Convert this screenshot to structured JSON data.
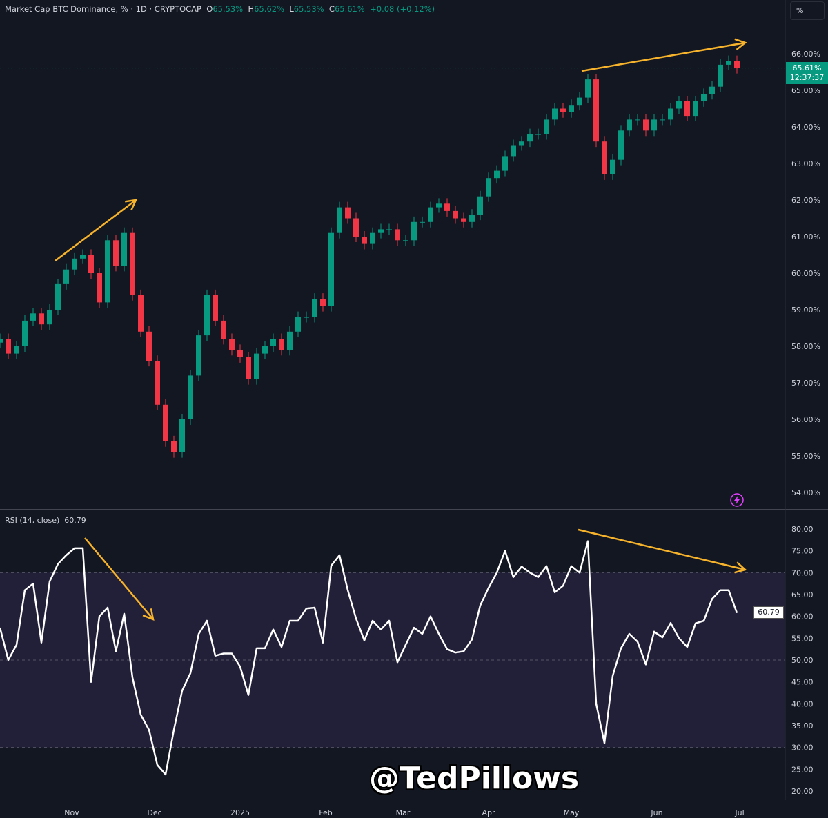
{
  "header": {
    "symbol": "Market Cap BTC Dominance, % · 1D · CRYPTOCAP",
    "o_label": "O",
    "o": "65.53%",
    "h_label": "H",
    "h": "65.62%",
    "l_label": "L",
    "l": "65.53%",
    "c_label": "C",
    "c": "65.61%",
    "change": "+0.08 (+0.12%)"
  },
  "scale_button": "%",
  "last_price": {
    "value": "65.61%",
    "countdown": "12:37:37"
  },
  "rsi_header": {
    "label": "RSI (14, close)",
    "value": "60.79"
  },
  "rsi_tag": "60.79",
  "watermark": "@TedPillows",
  "icons": {
    "alert": "lightning-icon"
  },
  "colors": {
    "up": "#089981",
    "down": "#f23645",
    "background": "#131722",
    "rsi_line": "#ffffff",
    "rsi_band": "#7e57c2",
    "annotation": "#f7b32b"
  },
  "chart_data": [
    {
      "type": "candlestick",
      "title": "Market Cap BTC Dominance, %",
      "interval": "1D",
      "ylim": [
        53.8,
        66.8
      ],
      "y_ticks": [
        "66.00%",
        "65.00%",
        "64.00%",
        "63.00%",
        "62.00%",
        "61.00%",
        "60.00%",
        "59.00%",
        "58.00%",
        "57.00%",
        "56.00%",
        "55.00%",
        "54.00%"
      ],
      "y_tick_values": [
        66,
        65,
        64,
        63,
        62,
        61,
        60,
        59,
        58,
        57,
        56,
        55,
        54
      ],
      "x_ticks": [
        {
          "label": "Nov",
          "date": "2024-11-01"
        },
        {
          "label": "Dec",
          "date": "2024-12-01"
        },
        {
          "label": "2025",
          "date": "2025-01-01"
        },
        {
          "label": "Feb",
          "date": "2025-02-01"
        },
        {
          "label": "Mar",
          "date": "2025-03-01"
        },
        {
          "label": "Apr",
          "date": "2025-04-01"
        },
        {
          "label": "May",
          "date": "2025-05-01"
        },
        {
          "label": "Jun",
          "date": "2025-06-01"
        },
        {
          "label": "Jul",
          "date": "2025-07-01"
        }
      ],
      "grid": false,
      "dates": [
        "2024-10-06",
        "2024-10-09",
        "2024-10-12",
        "2024-10-15",
        "2024-10-18",
        "2024-10-21",
        "2024-10-24",
        "2024-10-27",
        "2024-10-30",
        "2024-11-02",
        "2024-11-05",
        "2024-11-08",
        "2024-11-11",
        "2024-11-14",
        "2024-11-17",
        "2024-11-20",
        "2024-11-23",
        "2024-11-26",
        "2024-11-29",
        "2024-12-02",
        "2024-12-05",
        "2024-12-08",
        "2024-12-11",
        "2024-12-14",
        "2024-12-17",
        "2024-12-20",
        "2024-12-23",
        "2024-12-26",
        "2024-12-29",
        "2025-01-01",
        "2025-01-04",
        "2025-01-07",
        "2025-01-10",
        "2025-01-13",
        "2025-01-16",
        "2025-01-19",
        "2025-01-22",
        "2025-01-25",
        "2025-01-28",
        "2025-01-31",
        "2025-02-03",
        "2025-02-06",
        "2025-02-09",
        "2025-02-12",
        "2025-02-15",
        "2025-02-18",
        "2025-02-21",
        "2025-02-24",
        "2025-02-27",
        "2025-03-02",
        "2025-03-05",
        "2025-03-08",
        "2025-03-11",
        "2025-03-14",
        "2025-03-17",
        "2025-03-20",
        "2025-03-23",
        "2025-03-26",
        "2025-03-29",
        "2025-04-01",
        "2025-04-04",
        "2025-04-07",
        "2025-04-10",
        "2025-04-13",
        "2025-04-16",
        "2025-04-19",
        "2025-04-22",
        "2025-04-25",
        "2025-04-28",
        "2025-05-01",
        "2025-05-04",
        "2025-05-07",
        "2025-05-10",
        "2025-05-13",
        "2025-05-16",
        "2025-05-19",
        "2025-05-22",
        "2025-05-25",
        "2025-05-28",
        "2025-05-31",
        "2025-06-03",
        "2025-06-06",
        "2025-06-09",
        "2025-06-12",
        "2025-06-15",
        "2025-06-18",
        "2025-06-21",
        "2025-06-24",
        "2025-06-27",
        "2025-06-30"
      ],
      "close": [
        58.2,
        57.8,
        58.0,
        58.7,
        58.9,
        58.6,
        59.0,
        59.7,
        60.1,
        60.4,
        60.5,
        60.0,
        59.2,
        60.9,
        60.2,
        61.1,
        59.4,
        58.4,
        57.6,
        56.4,
        55.4,
        55.1,
        56.0,
        57.2,
        58.3,
        59.4,
        58.7,
        58.2,
        57.9,
        57.7,
        57.1,
        57.8,
        58.0,
        58.2,
        57.9,
        58.4,
        58.8,
        58.8,
        59.3,
        59.1,
        61.1,
        61.8,
        61.5,
        61.0,
        60.8,
        61.1,
        61.2,
        61.2,
        60.9,
        60.9,
        61.4,
        61.4,
        61.8,
        61.9,
        61.7,
        61.5,
        61.4,
        61.6,
        62.1,
        62.6,
        62.8,
        63.2,
        63.5,
        63.6,
        63.8,
        63.8,
        64.2,
        64.5,
        64.4,
        64.6,
        64.8,
        65.3,
        63.6,
        62.7,
        63.1,
        63.9,
        64.2,
        64.2,
        63.9,
        64.2,
        64.2,
        64.5,
        64.7,
        64.3,
        64.7,
        64.9,
        65.1,
        65.7,
        65.8,
        65.61
      ],
      "last_value": 65.61
    },
    {
      "type": "line",
      "title": "RSI (14, close)",
      "ylim": [
        17,
        82
      ],
      "y_ticks": [
        "80.00",
        "75.00",
        "70.00",
        "65.00",
        "60.00",
        "55.00",
        "50.00",
        "45.00",
        "40.00",
        "35.00",
        "30.00",
        "25.00",
        "20.00"
      ],
      "y_tick_values": [
        80,
        75,
        70,
        65,
        60,
        55,
        50,
        45,
        40,
        35,
        30,
        25,
        20
      ],
      "bands": {
        "upper": 70,
        "middle": 50,
        "lower": 30
      },
      "values": [
        57.4,
        50,
        53.5,
        66,
        67.5,
        54,
        68,
        72,
        74,
        75.6,
        75.6,
        45,
        60,
        62,
        52,
        60.6,
        46,
        37.5,
        34,
        26,
        23.8,
        34,
        43,
        47,
        56,
        59,
        51,
        51.5,
        51.5,
        48.5,
        42,
        52.7,
        52.7,
        57,
        53,
        59,
        59,
        61.8,
        62,
        54,
        71.6,
        74,
        66,
        59.5,
        54.5,
        59,
        57,
        59,
        49.5,
        53.5,
        57.4,
        56,
        60,
        56,
        52.5,
        51.7,
        52,
        54.7,
        62.5,
        66.5,
        70,
        75,
        69,
        71.4,
        70,
        69,
        71.5,
        65.5,
        67,
        71.5,
        70,
        77.2,
        40,
        31,
        46.4,
        52.7,
        56,
        54.2,
        49,
        56.5,
        55.2,
        58.5,
        55,
        53,
        58.4,
        59,
        64,
        66,
        66,
        60.79
      ],
      "last_value": 60.79
    }
  ]
}
